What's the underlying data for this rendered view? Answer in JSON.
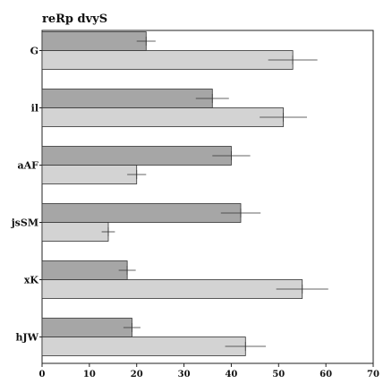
{
  "chart_data": {
    "type": "bar",
    "orientation": "horizontal",
    "title": "reRp dvyS",
    "xlabel": "",
    "ylabel": "",
    "categories": [
      "G",
      "il",
      "aAF",
      "jsSM",
      "xK",
      "hJW"
    ],
    "series": [
      {
        "color": "#a6a6a6",
        "values": [
          22,
          36,
          40,
          42,
          18,
          19
        ],
        "errors": [
          2,
          3.5,
          4,
          4.2,
          1.8,
          1.8
        ]
      },
      {
        "color": "#d3d3d3",
        "values": [
          53,
          51,
          20,
          14,
          55,
          43
        ],
        "errors": [
          5.2,
          5.0,
          2.0,
          1.4,
          5.5,
          4.3
        ]
      }
    ],
    "xlim": [
      0,
      70
    ],
    "xticks": [
      0,
      10,
      20,
      30,
      40,
      50,
      60,
      70
    ],
    "grid": false,
    "legend": "none"
  }
}
